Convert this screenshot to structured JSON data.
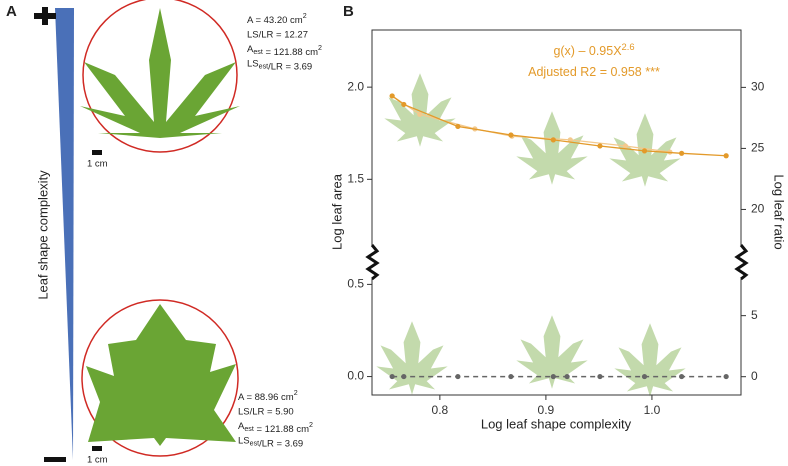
{
  "panel_a": {
    "label": "A",
    "axis_label": "Leaf shape complexity",
    "top_leaf": {
      "stats": [
        [
          "A = 43.20 cm",
          {
            "sup": "2"
          }
        ],
        [
          "LS/LR = 12.27"
        ],
        [
          "A",
          {
            "sub": "est"
          },
          " = 121.88 cm",
          {
            "sup": "2"
          }
        ],
        [
          "LS",
          {
            "sub": "est"
          },
          "/LR = 3.69"
        ]
      ],
      "scale": "1 cm"
    },
    "bottom_leaf": {
      "stats": [
        [
          "A = 88.96 cm",
          {
            "sup": "2"
          }
        ],
        [
          "LS/LR = 5.90"
        ],
        [
          "A",
          {
            "sub": "est"
          },
          " = 121.88 cm",
          {
            "sup": "2"
          }
        ],
        [
          "LS",
          {
            "sub": "est"
          },
          "/LR = 3.69"
        ]
      ],
      "scale": "1 cm"
    }
  },
  "chart_data": {
    "type": "line",
    "panel_label": "B",
    "xlabel": "Log leaf shape complexity",
    "ylabel": "Log leaf area",
    "y2label": "Log leaf ratio",
    "annotations": [
      [
        "g(x) – 0.95X",
        {
          "sup": "2.6"
        }
      ],
      [
        "Adjusted R2 = 0.958 ***"
      ]
    ],
    "xlim": [
      0.736,
      1.084
    ],
    "xticks": [
      0.8,
      0.9,
      {
        "value": 1,
        "label": "1.0"
      }
    ],
    "ylim": [
      -0.1,
      2.31
    ],
    "ybreak": [
      0.63,
      1.06
    ],
    "yticks": [
      {
        "value": 0,
        "label": "0.0"
      },
      0.5,
      1.5,
      {
        "value": 2,
        "label": "2.0"
      }
    ],
    "y2lim": [
      -1.5,
      34.7
    ],
    "y2break": [
      9.4,
      15.7
    ],
    "y2ticks": [
      0,
      5,
      20,
      25,
      30
    ],
    "series": [
      {
        "color": "#e39a2a",
        "axis": "y2",
        "x": [
          0.755,
          0.766,
          0.817,
          0.867,
          0.907,
          0.951,
          0.993,
          1.028,
          1.07
        ],
        "values": [
          29.3,
          28.6,
          26.8,
          26.1,
          25.7,
          25.2,
          24.8,
          24.6,
          24.4
        ]
      },
      {
        "color": "#f3c98d",
        "axis": "y2",
        "x": [
          0.755,
          0.781,
          0.833,
          0.868,
          0.923,
          0.975,
          1.017
        ],
        "values": [
          29.3,
          27.8,
          26.6,
          26.0,
          25.7,
          25.2,
          24.7
        ]
      },
      {
        "color": "#666666",
        "dashed": true,
        "x": [
          0.755,
          0.766,
          0.817,
          0.867,
          0.907,
          0.92,
          0.951,
          0.993,
          1.028,
          1.07
        ],
        "values": [
          0,
          0,
          0,
          0,
          0,
          0,
          0,
          0,
          0,
          0
        ]
      }
    ]
  }
}
